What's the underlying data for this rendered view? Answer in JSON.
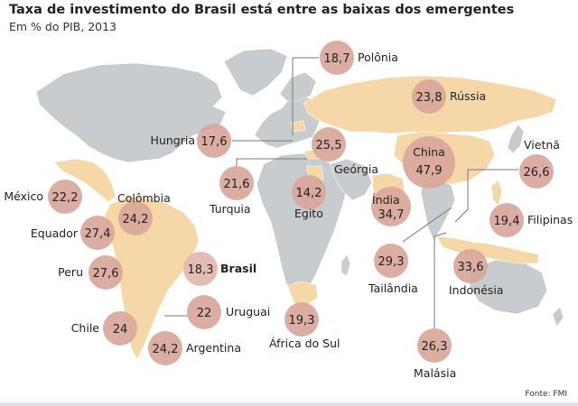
{
  "chart_data": {
    "type": "bubble-map",
    "title": "Taxa de investimento do Brasil está entre as baixas dos emergentes",
    "subtitle": "Em % do PIB, 2013",
    "source": "Fonte: FMI",
    "unit": "% do PIB",
    "year": 2013,
    "highlight": "Brasil",
    "colors": {
      "bubble": "#d9a79b",
      "bubble_highlight": "#e2b7ab",
      "land": "#c9cccf",
      "highlight_land": "#f6d7a8",
      "leader": "#777777"
    },
    "points": [
      {
        "country": "Polônia",
        "label": "Polônia",
        "value": 18.7,
        "display": "18,7"
      },
      {
        "country": "Rússia",
        "label": "Rússia",
        "value": 23.8,
        "display": "23,8"
      },
      {
        "country": "Hungria",
        "label": "Hungria",
        "value": 17.6,
        "display": "17,6"
      },
      {
        "country": "Geórgia",
        "label": "Geórgia",
        "value": 25.5,
        "display": "25,5"
      },
      {
        "country": "China",
        "label": "China",
        "value": 47.9,
        "display": "47,9"
      },
      {
        "country": "Vietnã",
        "label": "Vietnã",
        "value": 26.6,
        "display": "26,6"
      },
      {
        "country": "México",
        "label": "México",
        "value": 22.2,
        "display": "22,2"
      },
      {
        "country": "Colômbia",
        "label": "Colômbia",
        "value": 24.2,
        "display": "24,2"
      },
      {
        "country": "Turquia",
        "label": "Turquia",
        "value": 21.6,
        "display": "21,6"
      },
      {
        "country": "Egito",
        "label": "Egito",
        "value": 14.2,
        "display": "14,2"
      },
      {
        "country": "Índia",
        "label": "Índia",
        "value": 34.7,
        "display": "34,7"
      },
      {
        "country": "Filipinas",
        "label": "Filipinas",
        "value": 19.4,
        "display": "19,4"
      },
      {
        "country": "Equador",
        "label": "Equador",
        "value": 27.4,
        "display": "27,4"
      },
      {
        "country": "Peru",
        "label": "Peru",
        "value": 27.6,
        "display": "27,6"
      },
      {
        "country": "Brasil",
        "label": "Brasil",
        "value": 18.3,
        "display": "18,3"
      },
      {
        "country": "Tailândia",
        "label": "Tailândia",
        "value": 29.3,
        "display": "29,3"
      },
      {
        "country": "Indonésia",
        "label": "Indonésia",
        "value": 33.6,
        "display": "33,6"
      },
      {
        "country": "Uruguai",
        "label": "Uruguai",
        "value": 22.0,
        "display": "22"
      },
      {
        "country": "Chile",
        "label": "Chile",
        "value": 24.0,
        "display": "24"
      },
      {
        "country": "Argentina",
        "label": "Argentina",
        "value": 24.2,
        "display": "24,2"
      },
      {
        "country": "África do Sul",
        "label": "África do Sul",
        "value": 19.3,
        "display": "19,3"
      },
      {
        "country": "Malásia",
        "label": "Malásia",
        "value": 26.3,
        "display": "26,3"
      }
    ]
  }
}
